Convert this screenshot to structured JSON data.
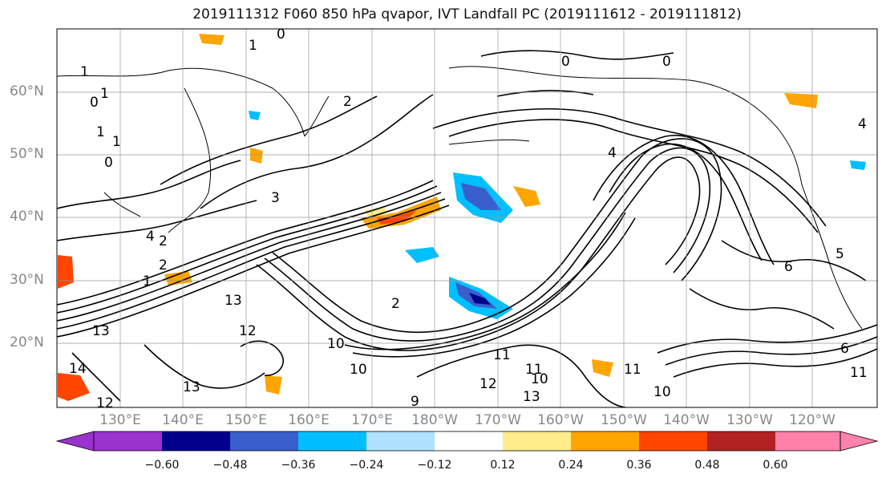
{
  "title": "2019111312 F060 850 hPa qvapor, IVT Landfall PC (2019111612 - 2019111812)",
  "lat_labels": [
    "60°N",
    "50°N",
    "40°N",
    "30°N",
    "20°N"
  ],
  "lon_labels": [
    "130°E",
    "140°E",
    "150°E",
    "160°E",
    "170°E",
    "180°W",
    "170°W",
    "160°W",
    "150°W",
    "140°W",
    "130°W",
    "120°W"
  ],
  "colorbar": {
    "ticks": [
      "−0.60",
      "−0.48",
      "−0.36",
      "−0.24",
      "−0.12",
      "0.12",
      "0.24",
      "0.36",
      "0.48",
      "0.60"
    ],
    "colors": [
      "#9a32cd",
      "#00008b",
      "#3a5fcd",
      "#00bfff",
      "#b0e2ff",
      "#ffffff",
      "#ffec8b",
      "#ffa500",
      "#ff4500",
      "#b22222",
      "#ff82ab"
    ]
  },
  "contour_labels": [
    "1",
    "0",
    "1",
    "0",
    "1",
    "2",
    "3",
    "2",
    "4",
    "1",
    "13",
    "13",
    "12",
    "13",
    "14",
    "12",
    "10",
    "10",
    "9",
    "2",
    "11",
    "10",
    "13",
    "11",
    "12",
    "10",
    "11",
    "6",
    "4",
    "4",
    "5",
    "0",
    "0",
    "1",
    "2",
    "0",
    "1",
    "6",
    "11"
  ]
}
